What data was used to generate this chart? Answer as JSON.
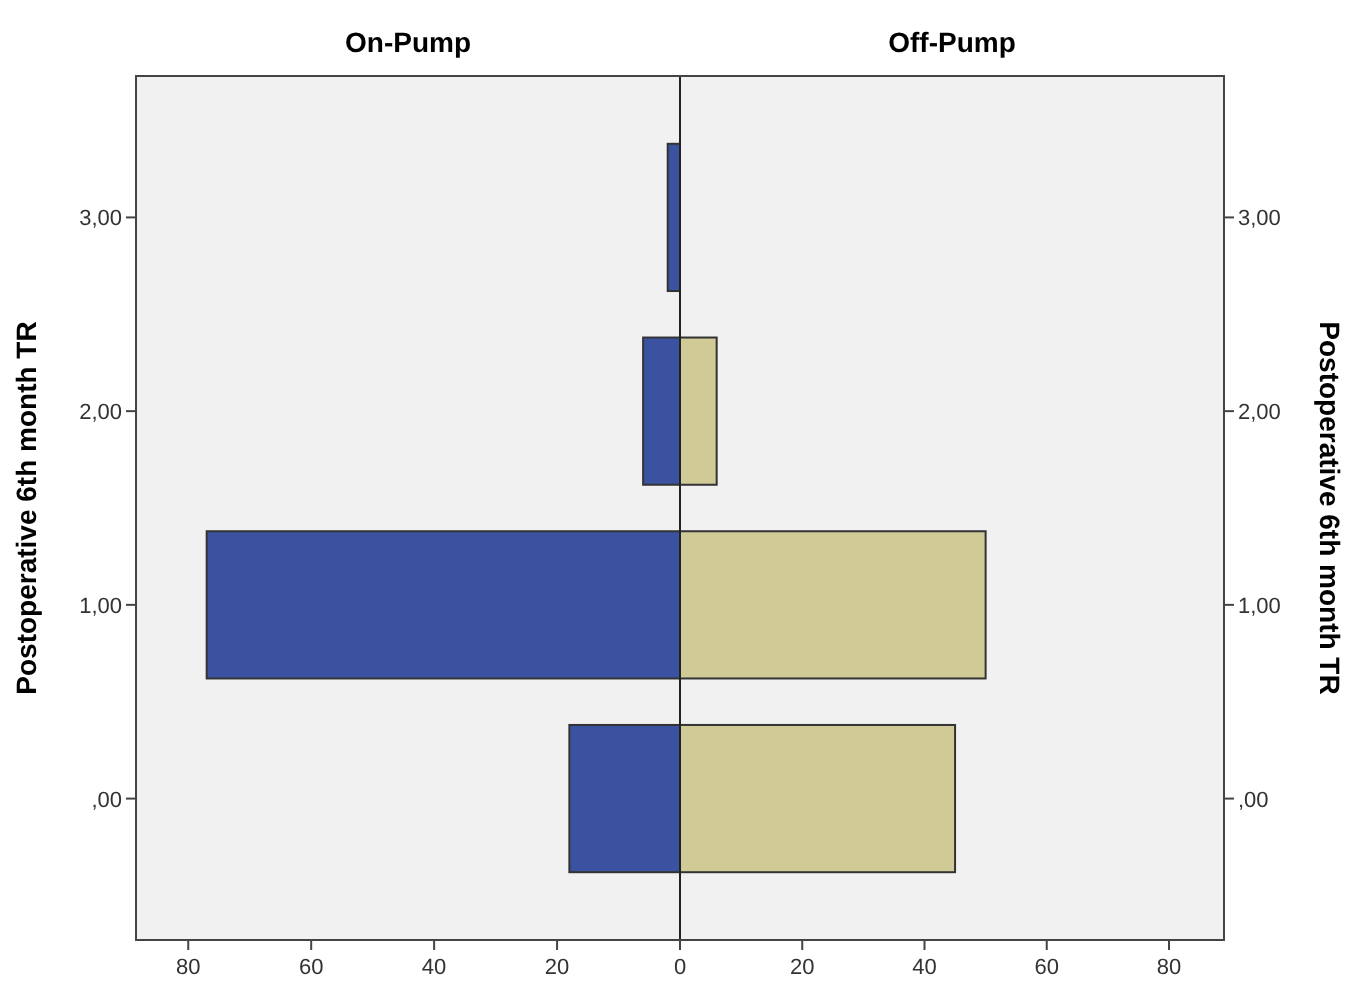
{
  "chart_data": [
    {
      "type": "bar",
      "orientation": "horizontal",
      "title": "On-Pump",
      "ylabel": "Postoperative 6th month TR",
      "categories": [
        "3,00",
        "2,00",
        "1,00",
        ",00"
      ],
      "values": [
        2,
        6,
        77,
        18
      ],
      "color": "#3a52a0",
      "xlim": [
        88.5,
        0
      ],
      "xticks": [
        80,
        60,
        40,
        20,
        0
      ]
    },
    {
      "type": "bar",
      "orientation": "horizontal",
      "title": "Off-Pump",
      "y2label": "Postoperative 6th month TR",
      "categories": [
        "3,00",
        "2,00",
        "1,00",
        ",00"
      ],
      "values": [
        0,
        6,
        50,
        45
      ],
      "color": "#cfca96",
      "xlim": [
        0,
        89
      ],
      "xticks": [
        {
          "value": 0,
          "label": null
        },
        20,
        40,
        60,
        80
      ]
    }
  ]
}
